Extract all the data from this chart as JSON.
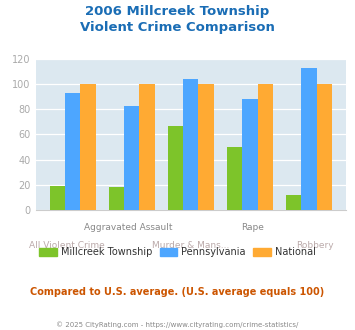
{
  "title": "2006 Millcreek Township\nViolent Crime Comparison",
  "millcreek": [
    19,
    18,
    67,
    50,
    12
  ],
  "pennsylvania": [
    93,
    83,
    104,
    88,
    113
  ],
  "national": [
    100,
    100,
    100,
    100,
    100
  ],
  "color_millcreek": "#7dc42a",
  "color_pennsylvania": "#4da6ff",
  "color_national": "#ffaa33",
  "ylim": [
    0,
    120
  ],
  "yticks": [
    0,
    20,
    40,
    60,
    80,
    100,
    120
  ],
  "title_color": "#1a6db5",
  "background_color": "#dce8f0",
  "legend_labels": [
    "Millcreek Township",
    "Pennsylvania",
    "National"
  ],
  "subtitle_text": "Compared to U.S. average. (U.S. average equals 100)",
  "footer_text": "© 2025 CityRating.com - https://www.cityrating.com/crime-statistics/",
  "subtitle_color": "#cc5500",
  "footer_color": "#888888",
  "axis_label_color_top": "#888888",
  "axis_label_color_bot": "#bbaaaa",
  "tick_color": "#aaaaaa",
  "top_labels": [
    "",
    "Aggravated Assault",
    "",
    "Rape",
    ""
  ],
  "bot_labels": [
    "All Violent Crime",
    "",
    "Murder & Mans...",
    "",
    "Robbery"
  ]
}
